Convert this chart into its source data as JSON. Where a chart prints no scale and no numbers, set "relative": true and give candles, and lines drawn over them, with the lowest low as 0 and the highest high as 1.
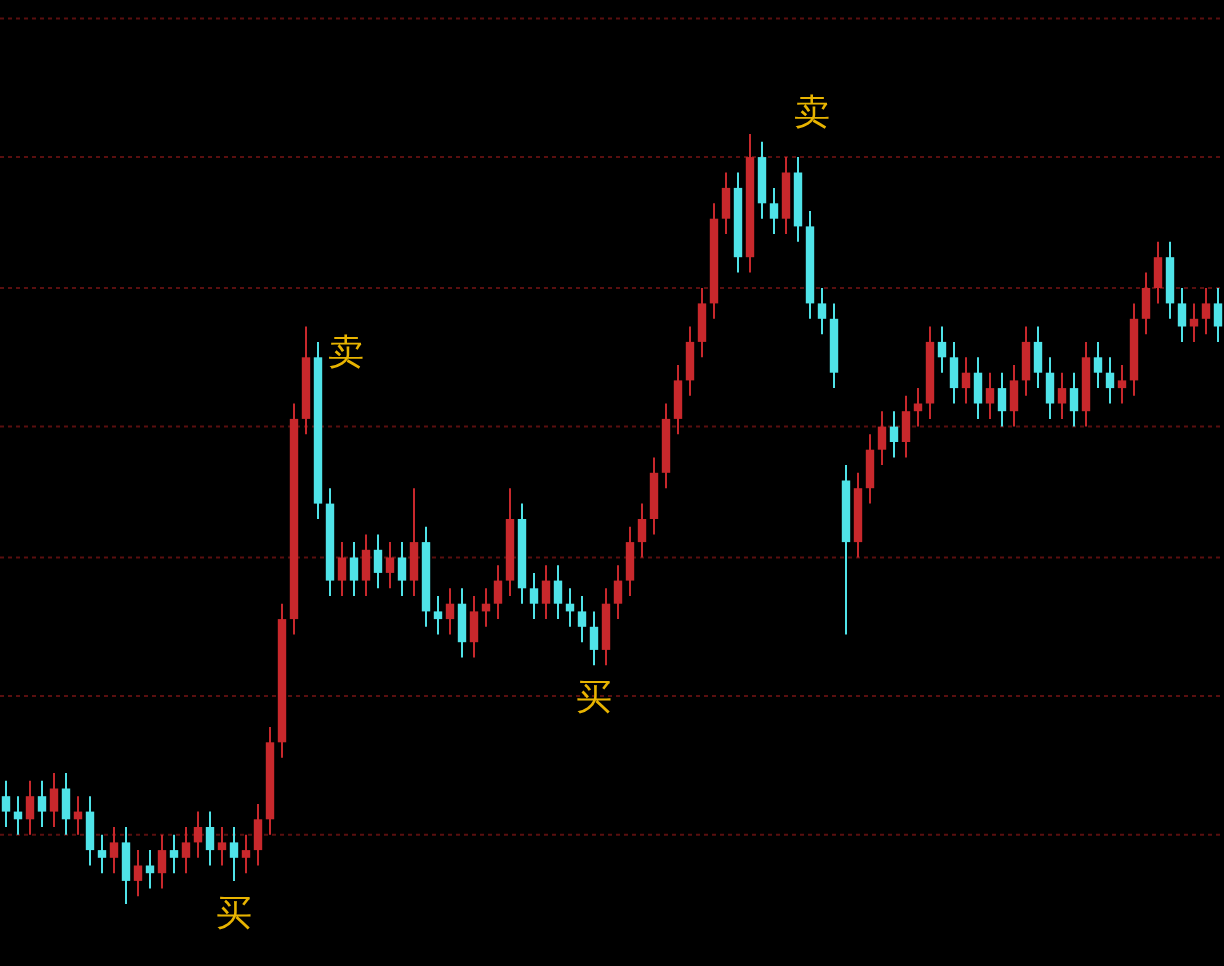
{
  "chart_data": {
    "type": "candlestick",
    "relative": true,
    "ref_lines": [
      {
        "axis": "y",
        "value": 0.09,
        "color": "#5a0f0f",
        "line_style": "dashed"
      },
      {
        "axis": "y",
        "value": 0.27,
        "color": "#5a0f0f",
        "line_style": "dashed"
      },
      {
        "axis": "y",
        "value": 0.45,
        "color": "#5a0f0f",
        "line_style": "dashed"
      },
      {
        "axis": "y",
        "value": 0.62,
        "color": "#5a0f0f",
        "line_style": "dashed"
      },
      {
        "axis": "y",
        "value": 0.8,
        "color": "#5a0f0f",
        "line_style": "dashed"
      },
      {
        "axis": "y",
        "value": 0.97,
        "color": "#5a0f0f",
        "line_style": "dashed"
      },
      {
        "axis": "y",
        "value": 1.15,
        "color": "#5a0f0f",
        "line_style": "dashed"
      }
    ],
    "categories": [
      null,
      null,
      null,
      null,
      null,
      null,
      null,
      null,
      null,
      null,
      null,
      null,
      null,
      null,
      null,
      null,
      null,
      null,
      null,
      null,
      null,
      null,
      null,
      null,
      null,
      null,
      null,
      null,
      null,
      null,
      null,
      null,
      null,
      null,
      null,
      null,
      null,
      null,
      null,
      null,
      null,
      null,
      null,
      null,
      null,
      null,
      null,
      null,
      null,
      null,
      null,
      null,
      null,
      null,
      null,
      null,
      null,
      null,
      null,
      null,
      null,
      null,
      null,
      null,
      null,
      null,
      null,
      null,
      null,
      null,
      null,
      null,
      null,
      null,
      null,
      null,
      null,
      null,
      null,
      null,
      null,
      null,
      null,
      null,
      null,
      null,
      null,
      null,
      null,
      null,
      null,
      null,
      null,
      null,
      null,
      null,
      null,
      null,
      null,
      null,
      null,
      null
    ],
    "ohlc": [
      [
        0.14,
        0.16,
        0.1,
        0.12
      ],
      [
        0.12,
        0.14,
        0.09,
        0.11
      ],
      [
        0.11,
        0.16,
        0.09,
        0.14
      ],
      [
        0.14,
        0.16,
        0.1,
        0.12
      ],
      [
        0.12,
        0.17,
        0.1,
        0.15
      ],
      [
        0.15,
        0.17,
        0.09,
        0.11
      ],
      [
        0.11,
        0.14,
        0.09,
        0.12
      ],
      [
        0.12,
        0.14,
        0.05,
        0.07
      ],
      [
        0.07,
        0.09,
        0.04,
        0.06
      ],
      [
        0.06,
        0.1,
        0.04,
        0.08
      ],
      [
        0.08,
        0.1,
        0.0,
        0.03
      ],
      [
        0.03,
        0.07,
        0.01,
        0.05
      ],
      [
        0.05,
        0.07,
        0.02,
        0.04
      ],
      [
        0.04,
        0.09,
        0.02,
        0.07
      ],
      [
        0.07,
        0.09,
        0.04,
        0.06
      ],
      [
        0.06,
        0.1,
        0.04,
        0.08
      ],
      [
        0.08,
        0.12,
        0.06,
        0.1
      ],
      [
        0.1,
        0.12,
        0.05,
        0.07
      ],
      [
        0.07,
        0.1,
        0.05,
        0.08
      ],
      [
        0.08,
        0.1,
        0.03,
        0.06
      ],
      [
        0.06,
        0.09,
        0.04,
        0.07
      ],
      [
        0.07,
        0.13,
        0.05,
        0.11
      ],
      [
        0.11,
        0.23,
        0.09,
        0.21
      ],
      [
        0.21,
        0.39,
        0.19,
        0.37
      ],
      [
        0.37,
        0.65,
        0.35,
        0.63
      ],
      [
        0.63,
        0.75,
        0.61,
        0.71
      ],
      [
        0.71,
        0.73,
        0.5,
        0.52
      ],
      [
        0.52,
        0.54,
        0.4,
        0.42
      ],
      [
        0.42,
        0.47,
        0.4,
        0.45
      ],
      [
        0.45,
        0.47,
        0.4,
        0.42
      ],
      [
        0.42,
        0.48,
        0.4,
        0.46
      ],
      [
        0.46,
        0.48,
        0.41,
        0.43
      ],
      [
        0.43,
        0.47,
        0.41,
        0.45
      ],
      [
        0.45,
        0.47,
        0.4,
        0.42
      ],
      [
        0.42,
        0.54,
        0.4,
        0.47
      ],
      [
        0.47,
        0.49,
        0.36,
        0.38
      ],
      [
        0.38,
        0.4,
        0.35,
        0.37
      ],
      [
        0.37,
        0.41,
        0.35,
        0.39
      ],
      [
        0.39,
        0.41,
        0.32,
        0.34
      ],
      [
        0.34,
        0.4,
        0.32,
        0.38
      ],
      [
        0.38,
        0.41,
        0.36,
        0.39
      ],
      [
        0.39,
        0.44,
        0.37,
        0.42
      ],
      [
        0.42,
        0.54,
        0.4,
        0.5
      ],
      [
        0.5,
        0.52,
        0.39,
        0.41
      ],
      [
        0.41,
        0.43,
        0.37,
        0.39
      ],
      [
        0.39,
        0.44,
        0.37,
        0.42
      ],
      [
        0.42,
        0.44,
        0.37,
        0.39
      ],
      [
        0.39,
        0.41,
        0.36,
        0.38
      ],
      [
        0.38,
        0.4,
        0.34,
        0.36
      ],
      [
        0.36,
        0.38,
        0.31,
        0.33
      ],
      [
        0.33,
        0.41,
        0.31,
        0.39
      ],
      [
        0.39,
        0.44,
        0.37,
        0.42
      ],
      [
        0.42,
        0.49,
        0.4,
        0.47
      ],
      [
        0.47,
        0.52,
        0.45,
        0.5
      ],
      [
        0.5,
        0.58,
        0.48,
        0.56
      ],
      [
        0.56,
        0.65,
        0.54,
        0.63
      ],
      [
        0.63,
        0.7,
        0.61,
        0.68
      ],
      [
        0.68,
        0.75,
        0.66,
        0.73
      ],
      [
        0.73,
        0.8,
        0.71,
        0.78
      ],
      [
        0.78,
        0.91,
        0.76,
        0.89
      ],
      [
        0.89,
        0.95,
        0.87,
        0.93
      ],
      [
        0.93,
        0.95,
        0.82,
        0.84
      ],
      [
        0.84,
        1.0,
        0.82,
        0.97
      ],
      [
        0.97,
        0.99,
        0.89,
        0.91
      ],
      [
        0.91,
        0.93,
        0.87,
        0.89
      ],
      [
        0.89,
        0.97,
        0.87,
        0.95
      ],
      [
        0.95,
        0.97,
        0.86,
        0.88
      ],
      [
        0.88,
        0.9,
        0.76,
        0.78
      ],
      [
        0.78,
        0.8,
        0.74,
        0.76
      ],
      [
        0.76,
        0.78,
        0.67,
        0.69
      ],
      [
        0.55,
        0.57,
        0.35,
        0.47
      ],
      [
        0.47,
        0.56,
        0.45,
        0.54
      ],
      [
        0.54,
        0.61,
        0.52,
        0.59
      ],
      [
        0.59,
        0.64,
        0.57,
        0.62
      ],
      [
        0.62,
        0.64,
        0.58,
        0.6
      ],
      [
        0.6,
        0.66,
        0.58,
        0.64
      ],
      [
        0.64,
        0.67,
        0.62,
        0.65
      ],
      [
        0.65,
        0.75,
        0.63,
        0.73
      ],
      [
        0.73,
        0.75,
        0.69,
        0.71
      ],
      [
        0.71,
        0.73,
        0.65,
        0.67
      ],
      [
        0.67,
        0.71,
        0.65,
        0.69
      ],
      [
        0.69,
        0.71,
        0.63,
        0.65
      ],
      [
        0.65,
        0.69,
        0.63,
        0.67
      ],
      [
        0.67,
        0.69,
        0.62,
        0.64
      ],
      [
        0.64,
        0.7,
        0.62,
        0.68
      ],
      [
        0.68,
        0.75,
        0.66,
        0.73
      ],
      [
        0.73,
        0.75,
        0.67,
        0.69
      ],
      [
        0.69,
        0.71,
        0.63,
        0.65
      ],
      [
        0.65,
        0.69,
        0.63,
        0.67
      ],
      [
        0.67,
        0.69,
        0.62,
        0.64
      ],
      [
        0.64,
        0.73,
        0.62,
        0.71
      ],
      [
        0.71,
        0.73,
        0.67,
        0.69
      ],
      [
        0.69,
        0.71,
        0.65,
        0.67
      ],
      [
        0.67,
        0.7,
        0.65,
        0.68
      ],
      [
        0.68,
        0.78,
        0.66,
        0.76
      ],
      [
        0.76,
        0.82,
        0.74,
        0.8
      ],
      [
        0.8,
        0.86,
        0.78,
        0.84
      ],
      [
        0.84,
        0.86,
        0.76,
        0.78
      ],
      [
        0.78,
        0.8,
        0.73,
        0.75
      ],
      [
        0.75,
        0.78,
        0.73,
        0.76
      ],
      [
        0.76,
        0.8,
        0.74,
        0.78
      ],
      [
        0.78,
        0.8,
        0.73,
        0.75
      ]
    ],
    "annotations": [
      {
        "text": "买",
        "y": 0.03
      },
      "卖",
      {
        "text": "买",
        "y": 0.31
      },
      "卖"
    ]
  }
}
